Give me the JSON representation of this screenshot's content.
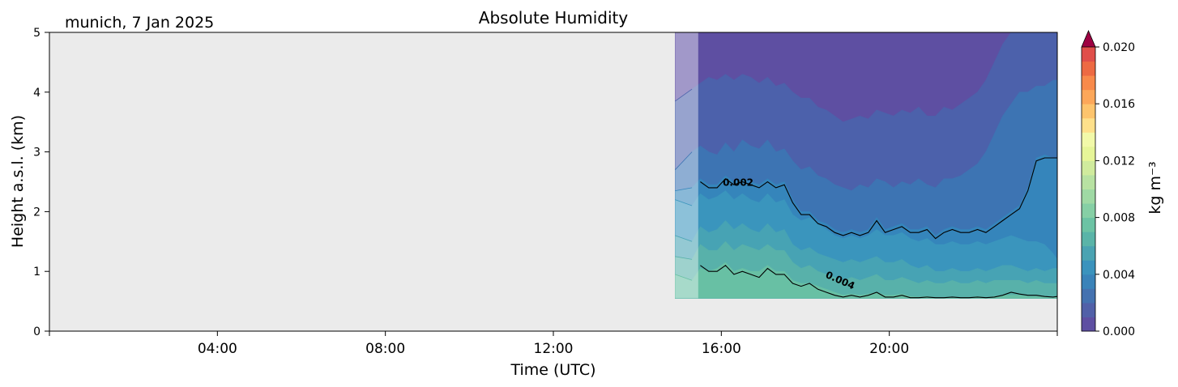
{
  "chart_data": {
    "type": "heatmap",
    "title": "Absolute Humidity",
    "subtitle": "munich, 7 Jan 2025",
    "xlabel": "Time (UTC)",
    "ylabel": "Height a.s.l. (km)",
    "xlim_hours": [
      0,
      24
    ],
    "ylim_km": [
      0,
      5
    ],
    "xticks": [
      {
        "h": 0,
        "label": ""
      },
      {
        "h": 4,
        "label": "04:00"
      },
      {
        "h": 8,
        "label": "08:00"
      },
      {
        "h": 12,
        "label": "12:00"
      },
      {
        "h": 16,
        "label": "16:00"
      },
      {
        "h": 20,
        "label": "20:00"
      },
      {
        "h": 24,
        "label": ""
      }
    ],
    "yticks": [
      {
        "v": 0,
        "label": "0"
      },
      {
        "v": 1,
        "label": "1"
      },
      {
        "v": 2,
        "label": "2"
      },
      {
        "v": 3,
        "label": "3"
      },
      {
        "v": 4,
        "label": "4"
      },
      {
        "v": 5,
        "label": "5"
      }
    ],
    "colorbar": {
      "label": "kg m⁻³",
      "cmap": "Spectral_r",
      "range": [
        0.0,
        0.02
      ],
      "levels": 20,
      "extend": "max",
      "ticks": [
        {
          "v": 0.0,
          "label": "0.000"
        },
        {
          "v": 0.004,
          "label": "0.004"
        },
        {
          "v": 0.008,
          "label": "0.008"
        },
        {
          "v": 0.012,
          "label": "0.012"
        },
        {
          "v": 0.016,
          "label": "0.016"
        },
        {
          "v": 0.02,
          "label": "0.020"
        }
      ],
      "colors": [
        "#5e4fa2",
        "#5160a8",
        "#4472b0",
        "#3a83b9",
        "#3b93bd",
        "#4aa3b2",
        "#5ab4a8",
        "#6cc3a4",
        "#86cfa5",
        "#9fd9a4",
        "#b8e2a2",
        "#d0eb9d",
        "#e6f598",
        "#f2f9a9",
        "#fee08b",
        "#fdc46d",
        "#fca75a",
        "#f88a4b",
        "#ed6a43",
        "#e04f4a",
        "#c9334d",
        "#ab1448",
        "#9e0142"
      ]
    },
    "data_window_hours": [
      14.9,
      24.0
    ],
    "data_min_height_km": 0.55,
    "overlay_window_hours": [
      14.9,
      15.45
    ],
    "background_color": "#ebebeb",
    "x_hours": [
      14.9,
      15.3,
      15.5,
      15.7,
      15.9,
      16.1,
      16.3,
      16.5,
      16.7,
      16.9,
      17.1,
      17.3,
      17.5,
      17.7,
      17.9,
      18.1,
      18.3,
      18.5,
      18.7,
      18.9,
      19.1,
      19.3,
      19.5,
      19.7,
      19.9,
      20.1,
      20.3,
      20.5,
      20.7,
      20.9,
      21.1,
      21.3,
      21.5,
      21.7,
      21.9,
      22.1,
      22.3,
      22.5,
      22.7,
      22.9,
      23.1,
      23.3,
      23.5,
      23.7,
      23.9,
      24.0
    ],
    "bands": [
      {
        "color": "#5e4fa2",
        "level": 0.0,
        "top": [
          5.0,
          5.0,
          5.0,
          5.0,
          5.0,
          5.0,
          5.0,
          5.0,
          5.0,
          5.0,
          5.0,
          5.0,
          5.0,
          5.0,
          5.0,
          5.0,
          5.0,
          5.0,
          5.0,
          5.0,
          5.0,
          5.0,
          5.0,
          5.0,
          5.0,
          5.0,
          5.0,
          5.0,
          5.0,
          5.0,
          5.0,
          5.0,
          5.0,
          5.0,
          5.0,
          5.0,
          5.0,
          5.0,
          5.0,
          5.0,
          5.0,
          5.0,
          5.0,
          5.0,
          5.0,
          5.0
        ]
      },
      {
        "color": "#4c61ab",
        "level": 0.001,
        "top": [
          3.85,
          4.05,
          4.15,
          4.25,
          4.2,
          4.3,
          4.2,
          4.3,
          4.25,
          4.15,
          4.25,
          4.1,
          4.15,
          4.0,
          3.9,
          3.9,
          3.75,
          3.7,
          3.6,
          3.5,
          3.55,
          3.6,
          3.55,
          3.7,
          3.65,
          3.6,
          3.7,
          3.65,
          3.75,
          3.6,
          3.6,
          3.75,
          3.7,
          3.8,
          3.9,
          4.0,
          4.2,
          4.5,
          4.8,
          5.0,
          5.0,
          5.0,
          5.0,
          5.0,
          5.0,
          5.0
        ]
      },
      {
        "color": "#3d74b3",
        "level": 0.0015,
        "top": [
          2.7,
          3.0,
          3.1,
          3.0,
          2.95,
          3.15,
          3.0,
          3.2,
          3.1,
          3.05,
          3.2,
          3.0,
          3.05,
          2.85,
          2.7,
          2.75,
          2.6,
          2.55,
          2.45,
          2.4,
          2.35,
          2.45,
          2.4,
          2.55,
          2.5,
          2.4,
          2.5,
          2.45,
          2.55,
          2.45,
          2.4,
          2.55,
          2.55,
          2.6,
          2.7,
          2.8,
          3.0,
          3.3,
          3.6,
          3.8,
          4.0,
          4.0,
          4.1,
          4.1,
          4.2,
          4.2
        ]
      },
      {
        "color": "#3585bb",
        "level": 0.002,
        "top": [
          2.35,
          2.4,
          2.55,
          2.45,
          2.45,
          2.6,
          2.5,
          2.55,
          2.5,
          2.45,
          2.55,
          2.45,
          2.5,
          2.2,
          2.0,
          2.0,
          1.85,
          1.8,
          1.7,
          1.65,
          1.7,
          1.65,
          1.7,
          1.9,
          1.7,
          1.75,
          1.8,
          1.7,
          1.7,
          1.75,
          1.6,
          1.7,
          1.75,
          1.7,
          1.7,
          1.75,
          1.7,
          1.8,
          1.9,
          2.0,
          2.1,
          2.4,
          2.9,
          2.95,
          2.9,
          2.9
        ]
      },
      {
        "color": "#3a95bd",
        "level": 0.003,
        "top": [
          2.2,
          2.1,
          2.3,
          2.2,
          2.25,
          2.35,
          2.2,
          2.3,
          2.2,
          2.15,
          2.3,
          2.15,
          2.2,
          1.95,
          1.85,
          1.9,
          1.8,
          1.7,
          1.6,
          1.55,
          1.6,
          1.55,
          1.6,
          1.7,
          1.6,
          1.6,
          1.65,
          1.55,
          1.5,
          1.55,
          1.45,
          1.45,
          1.5,
          1.45,
          1.45,
          1.5,
          1.45,
          1.5,
          1.55,
          1.6,
          1.55,
          1.5,
          1.5,
          1.45,
          1.3,
          1.2
        ]
      },
      {
        "color": "#47a3b4",
        "level": 0.0035,
        "top": [
          1.6,
          1.5,
          1.75,
          1.65,
          1.7,
          1.85,
          1.7,
          1.8,
          1.7,
          1.65,
          1.8,
          1.65,
          1.7,
          1.45,
          1.35,
          1.4,
          1.3,
          1.25,
          1.2,
          1.15,
          1.2,
          1.15,
          1.2,
          1.25,
          1.15,
          1.15,
          1.2,
          1.1,
          1.05,
          1.1,
          1.0,
          1.0,
          1.05,
          1.0,
          1.0,
          1.05,
          1.0,
          1.05,
          1.1,
          1.1,
          1.05,
          1.0,
          1.05,
          1.0,
          1.05,
          1.05
        ]
      },
      {
        "color": "#58b1aa",
        "level": 0.004,
        "top": [
          1.25,
          1.2,
          1.45,
          1.35,
          1.35,
          1.5,
          1.35,
          1.45,
          1.4,
          1.35,
          1.45,
          1.35,
          1.35,
          1.15,
          1.05,
          1.1,
          1.0,
          0.95,
          0.9,
          0.85,
          0.9,
          0.85,
          0.9,
          0.95,
          0.85,
          0.85,
          0.9,
          0.85,
          0.8,
          0.85,
          0.8,
          0.8,
          0.85,
          0.8,
          0.8,
          0.85,
          0.8,
          0.85,
          0.85,
          0.85,
          0.85,
          0.8,
          0.85,
          0.8,
          0.8,
          0.8
        ]
      },
      {
        "color": "#68c0a4",
        "level": 0.0045,
        "top": [
          0.95,
          0.85,
          1.05,
          1.0,
          1.05,
          1.15,
          1.0,
          1.05,
          1.0,
          1.0,
          1.1,
          1.0,
          1.0,
          0.85,
          0.8,
          0.8,
          0.75,
          0.7,
          0.65,
          0.6,
          0.62,
          0.6,
          0.62,
          0.65,
          0.6,
          0.6,
          0.62,
          0.58,
          0.57,
          0.58,
          0.56,
          0.56,
          0.57,
          0.56,
          0.56,
          0.58,
          0.56,
          0.58,
          0.6,
          0.6,
          0.6,
          0.58,
          0.58,
          0.57,
          0.57,
          0.57
        ]
      }
    ],
    "contours": [
      {
        "label": "0.002",
        "label_at_hour": 16.4,
        "label_at_km": 2.43,
        "label_rotation": 0,
        "y": [
          2.3,
          2.35,
          2.5,
          2.4,
          2.4,
          2.55,
          2.45,
          2.5,
          2.45,
          2.4,
          2.5,
          2.4,
          2.45,
          2.15,
          1.95,
          1.95,
          1.8,
          1.75,
          1.65,
          1.6,
          1.65,
          1.6,
          1.65,
          1.85,
          1.65,
          1.7,
          1.75,
          1.65,
          1.65,
          1.7,
          1.55,
          1.65,
          1.7,
          1.65,
          1.65,
          1.7,
          1.65,
          1.75,
          1.85,
          1.95,
          2.05,
          2.35,
          2.85,
          2.9,
          2.9,
          2.9
        ]
      },
      {
        "label": "0.004",
        "label_at_hour": 18.8,
        "label_at_km": 0.8,
        "label_rotation": 24,
        "y": [
          0.75,
          0.9,
          1.1,
          1.0,
          1.0,
          1.1,
          0.95,
          1.0,
          0.95,
          0.9,
          1.05,
          0.95,
          0.95,
          0.8,
          0.75,
          0.8,
          0.7,
          0.65,
          0.6,
          0.57,
          0.6,
          0.57,
          0.6,
          0.65,
          0.57,
          0.57,
          0.6,
          0.56,
          0.56,
          0.57,
          0.56,
          0.56,
          0.57,
          0.56,
          0.56,
          0.57,
          0.56,
          0.57,
          0.6,
          0.65,
          0.62,
          0.6,
          0.6,
          0.58,
          0.57,
          0.58
        ]
      }
    ]
  }
}
